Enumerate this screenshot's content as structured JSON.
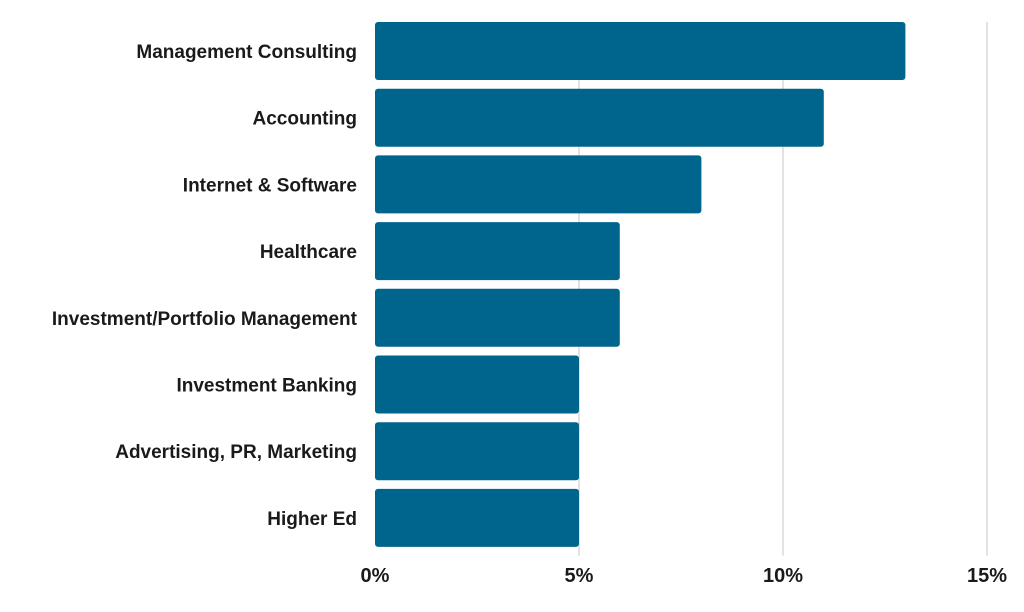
{
  "chart_data": {
    "type": "bar",
    "orientation": "horizontal",
    "categories": [
      "Management Consulting",
      "Accounting",
      "Internet & Software",
      "Healthcare",
      "Investment/Portfolio Management",
      "Investment Banking",
      "Advertising, PR, Marketing",
      "Higher Ed"
    ],
    "values": [
      13,
      11,
      8,
      6,
      6,
      5,
      5,
      5
    ],
    "xlim": [
      0,
      15
    ],
    "xticks": [
      0,
      5,
      10,
      15
    ],
    "xtick_labels": [
      "0%",
      "5%",
      "10%",
      "15%"
    ],
    "grid": "vertical",
    "bar_color": "#00658c",
    "title": "",
    "xlabel": "",
    "ylabel": ""
  }
}
